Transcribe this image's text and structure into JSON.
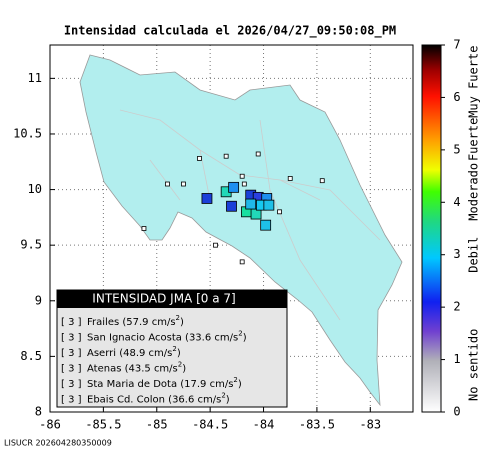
{
  "title": "Intensidad calculada el 2026/04/27_09:50:08_PM",
  "map": {
    "xlim": [
      -86,
      -82.6
    ],
    "ylim": [
      8,
      11.3
    ],
    "xticks": [
      {
        "value": -86,
        "label": "-86"
      },
      {
        "value": -85.5,
        "label": "-85.5"
      },
      {
        "value": -85,
        "label": "-85"
      },
      {
        "value": -84.5,
        "label": "-84.5"
      },
      {
        "value": -84,
        "label": "-84"
      },
      {
        "value": -83.5,
        "label": "-83.5"
      },
      {
        "value": -83,
        "label": "-83"
      }
    ],
    "yticks": [
      8,
      8.5,
      9,
      9.5,
      10,
      10.5,
      11
    ],
    "stations": [
      {
        "lon": -84.53,
        "lat": 9.92,
        "color": "#1b3fd8"
      },
      {
        "lon": -84.35,
        "lat": 9.98,
        "color": "#22d8b8"
      },
      {
        "lon": -84.28,
        "lat": 10.02,
        "color": "#1e8ff0"
      },
      {
        "lon": -84.3,
        "lat": 9.85,
        "color": "#1b3fd8"
      },
      {
        "lon": -84.16,
        "lat": 9.8,
        "color": "#18e0a0"
      },
      {
        "lon": -84.07,
        "lat": 9.78,
        "color": "#22d8b8"
      },
      {
        "lon": -84.12,
        "lat": 9.95,
        "color": "#1b3fd8"
      },
      {
        "lon": -84.05,
        "lat": 9.93,
        "color": "#2a40e0"
      },
      {
        "lon": -83.97,
        "lat": 9.92,
        "color": "#1e8ff0"
      },
      {
        "lon": -84.02,
        "lat": 9.86,
        "color": "#16c8f0"
      },
      {
        "lon": -83.95,
        "lat": 9.86,
        "color": "#1ec0e8"
      },
      {
        "lon": -84.12,
        "lat": 9.87,
        "color": "#20b8e8"
      },
      {
        "lon": -83.98,
        "lat": 9.68,
        "color": "#1ec0e8"
      }
    ],
    "small_stations": [
      [
        -84.6,
        10.28
      ],
      [
        -84.2,
        10.12
      ],
      [
        -84.05,
        10.32
      ],
      [
        -83.75,
        10.1
      ],
      [
        -84.75,
        10.05
      ],
      [
        -84.9,
        10.05
      ],
      [
        -85.12,
        9.65
      ],
      [
        -84.45,
        9.5
      ],
      [
        -84.2,
        9.35
      ],
      [
        -83.85,
        9.8
      ],
      [
        -84.35,
        10.3
      ],
      [
        -84.18,
        10.05
      ],
      [
        -83.45,
        10.08
      ]
    ]
  },
  "colorbar": {
    "ylim": [
      0,
      7
    ],
    "yticks": [
      0,
      1,
      2,
      3,
      4,
      5,
      6,
      7
    ],
    "levels": [
      "Muy Fuerte",
      "Fuerte",
      "Moderado",
      "Debil",
      "No sentido"
    ]
  },
  "legend": {
    "header": "INTENSIDAD JMA [0 a 7]",
    "entries": [
      {
        "intensity": "[ 3 ]",
        "text": "Frailes (57.9 cm/s",
        "sup": "2",
        "tail": ")"
      },
      {
        "intensity": "[ 3 ]",
        "text": "San Ignacio Acosta (33.6 cm/s",
        "sup": "2",
        "tail": ")"
      },
      {
        "intensity": "[ 3 ]",
        "text": "Aserri (48.9 cm/s",
        "sup": "2",
        "tail": ")"
      },
      {
        "intensity": "[ 3 ]",
        "text": "Atenas (43.5 cm/s",
        "sup": "2",
        "tail": ")"
      },
      {
        "intensity": "[ 3 ]",
        "text": "Sta Maria de Dota (17.9 cm/s",
        "sup": "2",
        "tail": ")"
      },
      {
        "intensity": "[ 3 ]",
        "text": "Ebais Cd. Colon (36.6 cm/s",
        "sup": "2",
        "tail": ")"
      }
    ]
  },
  "footer": "LISUCR 202604280350009"
}
